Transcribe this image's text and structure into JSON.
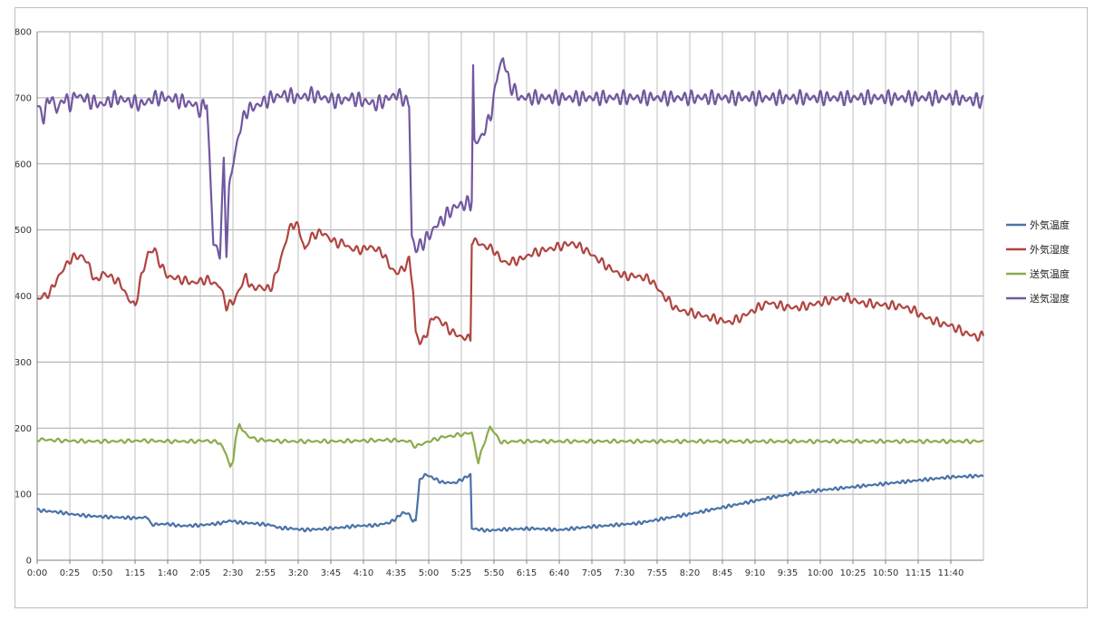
{
  "chart_data": {
    "type": "line",
    "title": "",
    "xlabel": "",
    "ylabel": "",
    "ylim": [
      0,
      800
    ],
    "yticks": [
      0,
      100,
      200,
      300,
      400,
      500,
      600,
      700,
      800
    ],
    "grid": true,
    "legend_position": "right",
    "x_tick_labels": [
      "0:00",
      "0:25",
      "0:50",
      "1:15",
      "1:40",
      "2:05",
      "2:30",
      "2:55",
      "3:20",
      "3:45",
      "4:10",
      "4:35",
      "5:00",
      "5:25",
      "5:50",
      "6:15",
      "6:40",
      "7:05",
      "7:30",
      "7:55",
      "8:20",
      "8:45",
      "9:10",
      "9:35",
      "10:00",
      "10:25",
      "10:50",
      "11:15",
      "11:40"
    ],
    "x_minutes_range": [
      0,
      725
    ],
    "series": [
      {
        "name": "外気温度",
        "color": "#4a72a8",
        "points": [
          [
            0,
            76
          ],
          [
            10,
            74
          ],
          [
            20,
            72
          ],
          [
            25,
            70
          ],
          [
            40,
            67
          ],
          [
            60,
            65
          ],
          [
            75,
            64
          ],
          [
            85,
            65
          ],
          [
            87,
            54
          ],
          [
            100,
            55
          ],
          [
            110,
            52
          ],
          [
            125,
            53
          ],
          [
            140,
            56
          ],
          [
            148,
            60
          ],
          [
            155,
            57
          ],
          [
            165,
            56
          ],
          [
            180,
            53
          ],
          [
            185,
            49
          ],
          [
            195,
            48
          ],
          [
            205,
            46
          ],
          [
            215,
            47
          ],
          [
            230,
            49
          ],
          [
            245,
            52
          ],
          [
            260,
            53
          ],
          [
            270,
            57
          ],
          [
            275,
            63
          ],
          [
            280,
            72
          ],
          [
            285,
            70
          ],
          [
            288,
            58
          ],
          [
            290,
            60
          ],
          [
            293,
            120
          ],
          [
            297,
            130
          ],
          [
            302,
            126
          ],
          [
            310,
            118
          ],
          [
            320,
            117
          ],
          [
            328,
            125
          ],
          [
            332,
            130
          ],
          [
            333,
            48
          ],
          [
            345,
            45
          ],
          [
            360,
            47
          ],
          [
            380,
            48
          ],
          [
            400,
            46
          ],
          [
            420,
            50
          ],
          [
            440,
            53
          ],
          [
            460,
            56
          ],
          [
            480,
            63
          ],
          [
            500,
            70
          ],
          [
            520,
            78
          ],
          [
            540,
            86
          ],
          [
            560,
            94
          ],
          [
            580,
            101
          ],
          [
            600,
            106
          ],
          [
            620,
            110
          ],
          [
            640,
            114
          ],
          [
            660,
            118
          ],
          [
            680,
            122
          ],
          [
            700,
            126
          ],
          [
            725,
            128
          ]
        ]
      },
      {
        "name": "外気湿度",
        "color": "#b04541",
        "points": [
          [
            0,
            395
          ],
          [
            5,
            400
          ],
          [
            10,
            405
          ],
          [
            15,
            425
          ],
          [
            20,
            440
          ],
          [
            25,
            455
          ],
          [
            30,
            460
          ],
          [
            35,
            460
          ],
          [
            40,
            445
          ],
          [
            45,
            420
          ],
          [
            50,
            435
          ],
          [
            55,
            430
          ],
          [
            60,
            425
          ],
          [
            65,
            415
          ],
          [
            70,
            395
          ],
          [
            75,
            385
          ],
          [
            80,
            430
          ],
          [
            85,
            465
          ],
          [
            90,
            470
          ],
          [
            95,
            445
          ],
          [
            100,
            430
          ],
          [
            110,
            425
          ],
          [
            120,
            420
          ],
          [
            130,
            425
          ],
          [
            140,
            415
          ],
          [
            145,
            385
          ],
          [
            150,
            390
          ],
          [
            155,
            410
          ],
          [
            160,
            430
          ],
          [
            165,
            410
          ],
          [
            170,
            415
          ],
          [
            175,
            410
          ],
          [
            180,
            415
          ],
          [
            185,
            445
          ],
          [
            190,
            480
          ],
          [
            195,
            510
          ],
          [
            200,
            505
          ],
          [
            205,
            470
          ],
          [
            210,
            490
          ],
          [
            215,
            495
          ],
          [
            220,
            495
          ],
          [
            225,
            485
          ],
          [
            230,
            480
          ],
          [
            235,
            480
          ],
          [
            240,
            472
          ],
          [
            245,
            470
          ],
          [
            250,
            470
          ],
          [
            255,
            475
          ],
          [
            260,
            470
          ],
          [
            265,
            465
          ],
          [
            270,
            445
          ],
          [
            275,
            435
          ],
          [
            280,
            440
          ],
          [
            285,
            455
          ],
          [
            288,
            410
          ],
          [
            290,
            345
          ],
          [
            293,
            330
          ],
          [
            297,
            335
          ],
          [
            300,
            355
          ],
          [
            305,
            370
          ],
          [
            310,
            360
          ],
          [
            318,
            345
          ],
          [
            325,
            338
          ],
          [
            332,
            335
          ],
          [
            333,
            485
          ],
          [
            340,
            478
          ],
          [
            350,
            470
          ],
          [
            355,
            455
          ],
          [
            360,
            450
          ],
          [
            370,
            455
          ],
          [
            380,
            465
          ],
          [
            390,
            470
          ],
          [
            400,
            475
          ],
          [
            410,
            480
          ],
          [
            420,
            470
          ],
          [
            430,
            455
          ],
          [
            440,
            440
          ],
          [
            450,
            430
          ],
          [
            460,
            430
          ],
          [
            470,
            425
          ],
          [
            480,
            400
          ],
          [
            490,
            380
          ],
          [
            500,
            375
          ],
          [
            510,
            370
          ],
          [
            520,
            365
          ],
          [
            530,
            360
          ],
          [
            540,
            368
          ],
          [
            550,
            380
          ],
          [
            560,
            390
          ],
          [
            570,
            385
          ],
          [
            580,
            382
          ],
          [
            590,
            385
          ],
          [
            600,
            390
          ],
          [
            610,
            395
          ],
          [
            620,
            398
          ],
          [
            630,
            390
          ],
          [
            640,
            388
          ],
          [
            650,
            386
          ],
          [
            660,
            385
          ],
          [
            670,
            380
          ],
          [
            680,
            368
          ],
          [
            690,
            360
          ],
          [
            700,
            355
          ],
          [
            710,
            345
          ],
          [
            720,
            338
          ],
          [
            725,
            340
          ]
        ]
      },
      {
        "name": "送気温度",
        "color": "#8aac4c",
        "points": [
          [
            0,
            183
          ],
          [
            20,
            181
          ],
          [
            40,
            180
          ],
          [
            60,
            180
          ],
          [
            80,
            181
          ],
          [
            100,
            180
          ],
          [
            120,
            180
          ],
          [
            130,
            181
          ],
          [
            140,
            178
          ],
          [
            145,
            160
          ],
          [
            148,
            140
          ],
          [
            150,
            150
          ],
          [
            152,
            185
          ],
          [
            155,
            205
          ],
          [
            158,
            196
          ],
          [
            162,
            187
          ],
          [
            170,
            182
          ],
          [
            190,
            180
          ],
          [
            210,
            180
          ],
          [
            230,
            180
          ],
          [
            250,
            181
          ],
          [
            270,
            182
          ],
          [
            285,
            180
          ],
          [
            290,
            172
          ],
          [
            300,
            180
          ],
          [
            310,
            186
          ],
          [
            320,
            189
          ],
          [
            330,
            192
          ],
          [
            333,
            193
          ],
          [
            335,
            175
          ],
          [
            338,
            148
          ],
          [
            342,
            175
          ],
          [
            347,
            202
          ],
          [
            352,
            188
          ],
          [
            356,
            178
          ],
          [
            365,
            180
          ],
          [
            400,
            180
          ],
          [
            450,
            180
          ],
          [
            500,
            180
          ],
          [
            550,
            180
          ],
          [
            600,
            180
          ],
          [
            650,
            180
          ],
          [
            700,
            180
          ],
          [
            725,
            180
          ]
        ]
      },
      {
        "name": "送気湿度",
        "color": "#7258a0",
        "points": [
          [
            0,
            690
          ],
          [
            5,
            670
          ],
          [
            10,
            705
          ],
          [
            15,
            680
          ],
          [
            20,
            700
          ],
          [
            25,
            690
          ],
          [
            30,
            705
          ],
          [
            40,
            695
          ],
          [
            50,
            690
          ],
          [
            60,
            700
          ],
          [
            70,
            695
          ],
          [
            80,
            690
          ],
          [
            90,
            700
          ],
          [
            100,
            700
          ],
          [
            110,
            695
          ],
          [
            120,
            690
          ],
          [
            125,
            680
          ],
          [
            130,
            695
          ],
          [
            135,
            480
          ],
          [
            138,
            470
          ],
          [
            140,
            465
          ],
          [
            143,
            600
          ],
          [
            145,
            470
          ],
          [
            147,
            560
          ],
          [
            150,
            600
          ],
          [
            155,
            650
          ],
          [
            160,
            680
          ],
          [
            170,
            690
          ],
          [
            180,
            700
          ],
          [
            190,
            705
          ],
          [
            200,
            700
          ],
          [
            210,
            705
          ],
          [
            220,
            700
          ],
          [
            230,
            695
          ],
          [
            240,
            700
          ],
          [
            250,
            695
          ],
          [
            260,
            690
          ],
          [
            270,
            700
          ],
          [
            275,
            705
          ],
          [
            280,
            700
          ],
          [
            285,
            690
          ],
          [
            287,
            490
          ],
          [
            290,
            470
          ],
          [
            295,
            480
          ],
          [
            300,
            490
          ],
          [
            305,
            505
          ],
          [
            310,
            515
          ],
          [
            315,
            525
          ],
          [
            320,
            535
          ],
          [
            325,
            538
          ],
          [
            330,
            540
          ],
          [
            332,
            540
          ],
          [
            333,
            550
          ],
          [
            334,
            745
          ],
          [
            335,
            630
          ],
          [
            340,
            640
          ],
          [
            345,
            660
          ],
          [
            348,
            680
          ],
          [
            350,
            700
          ],
          [
            353,
            740
          ],
          [
            357,
            760
          ],
          [
            362,
            720
          ],
          [
            370,
            700
          ],
          [
            400,
            700
          ],
          [
            450,
            700
          ],
          [
            500,
            700
          ],
          [
            550,
            700
          ],
          [
            600,
            700
          ],
          [
            650,
            700
          ],
          [
            700,
            700
          ],
          [
            725,
            695
          ]
        ]
      }
    ]
  }
}
